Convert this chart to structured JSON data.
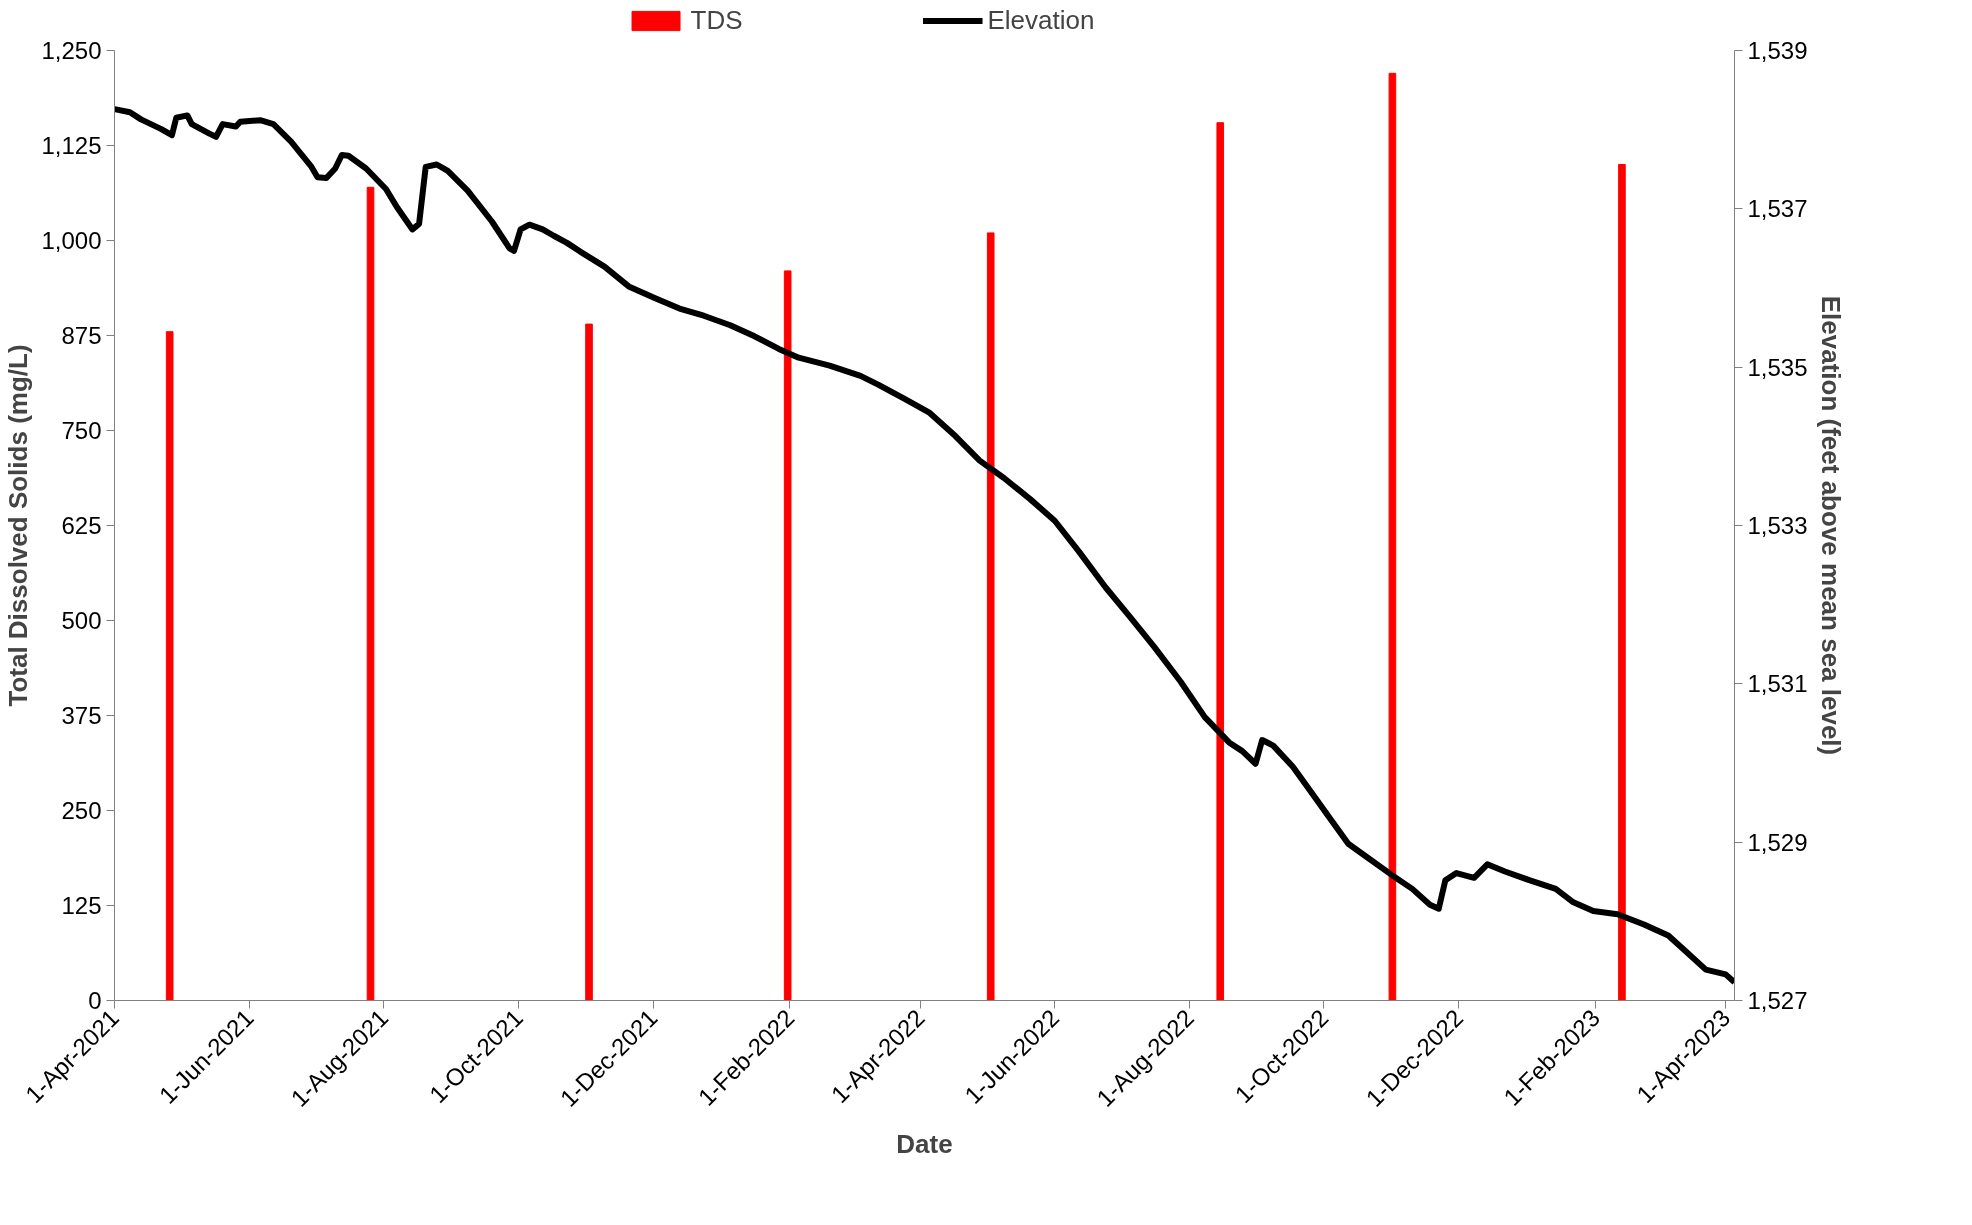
{
  "chart_data": {
    "type": "bar",
    "xlabel": "Date",
    "ylabel": "Total Dissolved Solids (mg/L)",
    "y2label": "Elevation (feet above mean sea level)",
    "xlim": [
      "2021-04-01",
      "2023-04-05"
    ],
    "xticks": [
      {
        "value": "2021-04-01",
        "label": "1-Apr-2021"
      },
      {
        "value": "2021-06-01",
        "label": "1-Jun-2021"
      },
      {
        "value": "2021-08-01",
        "label": "1-Aug-2021"
      },
      {
        "value": "2021-10-01",
        "label": "1-Oct-2021"
      },
      {
        "value": "2021-12-01",
        "label": "1-Dec-2021"
      },
      {
        "value": "2022-02-01",
        "label": "1-Feb-2022"
      },
      {
        "value": "2022-04-01",
        "label": "1-Apr-2022"
      },
      {
        "value": "2022-06-01",
        "label": "1-Jun-2022"
      },
      {
        "value": "2022-08-01",
        "label": "1-Aug-2022"
      },
      {
        "value": "2022-10-01",
        "label": "1-Oct-2022"
      },
      {
        "value": "2022-12-01",
        "label": "1-Dec-2022"
      },
      {
        "value": "2023-02-01",
        "label": "1-Feb-2023"
      },
      {
        "value": "2023-04-01",
        "label": "1-Apr-2023"
      }
    ],
    "ylim": [
      0,
      1250
    ],
    "yticks": [
      0,
      125,
      250,
      375,
      500,
      625,
      750,
      875,
      {
        "value": 1000,
        "label": "1,000"
      },
      {
        "value": 1125,
        "label": "1,125"
      },
      {
        "value": 1250,
        "label": "1,250"
      }
    ],
    "y2lim": [
      1527,
      1539
    ],
    "y2ticks": [
      {
        "value": 1527,
        "label": "1,527"
      },
      {
        "value": 1529,
        "label": "1,529"
      },
      {
        "value": 1531,
        "label": "1,531"
      },
      {
        "value": 1533,
        "label": "1,533"
      },
      {
        "value": 1535,
        "label": "1,535"
      },
      {
        "value": 1537,
        "label": "1,537"
      },
      {
        "value": 1539,
        "label": "1,539"
      }
    ],
    "grid": false,
    "legend": "top",
    "series": [
      {
        "name": "TDS",
        "color": "#ff0000",
        "x": [
          "2021-04-26",
          "2021-07-26",
          "2021-11-02",
          "2022-01-31",
          "2022-05-03",
          "2022-08-15",
          "2022-11-01",
          "2023-02-13"
        ],
        "values": [
          880,
          1070,
          890,
          960,
          1010,
          1155,
          1220,
          1100
        ]
      },
      {
        "name": "Elevation",
        "type": "line",
        "axis": "y2",
        "color": "#000000",
        "x": [
          "2021-04-01",
          "2021-04-08",
          "2021-04-13",
          "2021-04-22",
          "2021-04-27",
          "2021-04-29",
          "2021-05-04",
          "2021-05-06",
          "2021-05-14",
          "2021-05-17",
          "2021-05-20",
          "2021-05-26",
          "2021-05-28",
          "2021-06-06",
          "2021-06-12",
          "2021-06-20",
          "2021-06-29",
          "2021-07-02",
          "2021-07-06",
          "2021-07-10",
          "2021-07-13",
          "2021-07-16",
          "2021-07-24",
          "2021-08-02",
          "2021-08-07",
          "2021-08-14",
          "2021-08-17",
          "2021-08-20",
          "2021-08-25",
          "2021-08-30",
          "2021-09-08",
          "2021-09-19",
          "2021-09-27",
          "2021-09-29",
          "2021-10-02",
          "2021-10-06",
          "2021-10-12",
          "2021-10-17",
          "2021-10-23",
          "2021-10-29",
          "2021-11-09",
          "2021-11-20",
          "2021-12-02",
          "2021-12-13",
          "2021-12-24",
          "2022-01-05",
          "2022-01-16",
          "2022-01-27",
          "2022-02-05",
          "2022-02-19",
          "2022-03-05",
          "2022-03-13",
          "2022-03-25",
          "2022-04-05",
          "2022-04-17",
          "2022-04-28",
          "2022-05-09",
          "2022-05-21",
          "2022-06-01",
          "2022-06-12",
          "2022-06-24",
          "2022-07-05",
          "2022-07-16",
          "2022-07-28",
          "2022-08-08",
          "2022-08-19",
          "2022-08-25",
          "2022-08-31",
          "2022-09-03",
          "2022-09-08",
          "2022-09-17",
          "2022-09-25",
          "2022-10-04",
          "2022-10-12",
          "2022-10-21",
          "2022-11-01",
          "2022-11-10",
          "2022-11-18",
          "2022-11-22",
          "2022-11-25",
          "2022-11-30",
          "2022-12-08",
          "2022-12-14",
          "2022-12-22",
          "2023-01-02",
          "2023-01-14",
          "2023-01-22",
          "2023-01-31",
          "2023-02-11",
          "2023-02-23",
          "2023-03-06",
          "2023-03-14",
          "2023-03-23",
          "2023-04-01",
          "2023-04-05"
        ],
        "values": [
          1538.26,
          1538.22,
          1538.13,
          1538.01,
          1537.93,
          1538.15,
          1538.18,
          1538.07,
          1537.95,
          1537.91,
          1538.07,
          1538.04,
          1538.1,
          1538.12,
          1538.07,
          1537.85,
          1537.54,
          1537.4,
          1537.39,
          1537.51,
          1537.68,
          1537.67,
          1537.51,
          1537.25,
          1537.02,
          1536.74,
          1536.81,
          1537.53,
          1537.56,
          1537.48,
          1537.23,
          1536.84,
          1536.5,
          1536.47,
          1536.74,
          1536.8,
          1536.74,
          1536.66,
          1536.57,
          1536.46,
          1536.27,
          1536.02,
          1535.87,
          1535.74,
          1535.65,
          1535.53,
          1535.39,
          1535.23,
          1535.12,
          1535.02,
          1534.89,
          1534.78,
          1534.6,
          1534.43,
          1534.13,
          1533.82,
          1533.6,
          1533.33,
          1533.06,
          1532.67,
          1532.22,
          1531.85,
          1531.47,
          1531.03,
          1530.58,
          1530.26,
          1530.15,
          1529.99,
          1530.29,
          1530.22,
          1529.95,
          1529.64,
          1529.29,
          1528.98,
          1528.8,
          1528.58,
          1528.41,
          1528.21,
          1528.16,
          1528.52,
          1528.61,
          1528.55,
          1528.72,
          1528.63,
          1528.52,
          1528.41,
          1528.24,
          1528.13,
          1528.09,
          1527.96,
          1527.82,
          1527.62,
          1527.39,
          1527.33,
          1527.23
        ]
      }
    ]
  }
}
